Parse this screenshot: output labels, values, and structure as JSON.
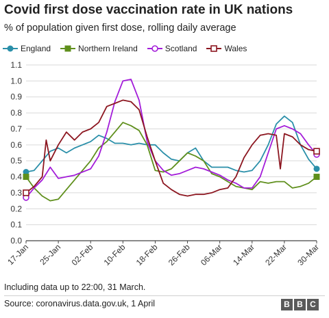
{
  "title": "Covid first dose vaccination rate in UK nations",
  "subtitle": "% of population given first dose, rolling daily average",
  "note": "Including data up to 22:00, 31 March.",
  "source": "Source: coronavirus.data.gov.uk, 1 April",
  "logo": [
    "B",
    "B",
    "C"
  ],
  "chart_data": {
    "type": "line",
    "x_start": "2021-01-17",
    "x_end": "2021-03-30",
    "x_tick_labels": [
      "17-Jan",
      "25-Jan",
      "02-Feb",
      "10-Feb",
      "18-Feb",
      "26-Feb",
      "06-Mar",
      "14-Mar",
      "22-Mar",
      "30-Mar"
    ],
    "y_ticks": [
      0.0,
      0.1,
      0.2,
      0.3,
      0.4,
      0.5,
      0.6,
      0.7,
      0.8,
      0.9,
      1.0,
      1.1
    ],
    "ylim": [
      0,
      1.1
    ],
    "grid": "horizontal",
    "legend_position": "top",
    "series": [
      {
        "name": "England",
        "color": "#2a8fa9",
        "marker": "circle",
        "points": [
          [
            "2021-01-17",
            0.43
          ],
          [
            "2021-01-19",
            0.44
          ],
          [
            "2021-01-21",
            0.5
          ],
          [
            "2021-01-23",
            0.56
          ],
          [
            "2021-01-25",
            0.58
          ],
          [
            "2021-01-27",
            0.55
          ],
          [
            "2021-01-29",
            0.58
          ],
          [
            "2021-01-31",
            0.6
          ],
          [
            "2021-02-02",
            0.62
          ],
          [
            "2021-02-04",
            0.66
          ],
          [
            "2021-02-06",
            0.64
          ],
          [
            "2021-02-08",
            0.61
          ],
          [
            "2021-02-10",
            0.61
          ],
          [
            "2021-02-12",
            0.6
          ],
          [
            "2021-02-14",
            0.61
          ],
          [
            "2021-02-16",
            0.6
          ],
          [
            "2021-02-18",
            0.6
          ],
          [
            "2021-02-20",
            0.55
          ],
          [
            "2021-02-22",
            0.51
          ],
          [
            "2021-02-24",
            0.5
          ],
          [
            "2021-02-26",
            0.55
          ],
          [
            "2021-02-28",
            0.58
          ],
          [
            "2021-03-02",
            0.5
          ],
          [
            "2021-03-04",
            0.46
          ],
          [
            "2021-03-06",
            0.46
          ],
          [
            "2021-03-08",
            0.46
          ],
          [
            "2021-03-10",
            0.44
          ],
          [
            "2021-03-12",
            0.43
          ],
          [
            "2021-03-14",
            0.44
          ],
          [
            "2021-03-16",
            0.5
          ],
          [
            "2021-03-18",
            0.6
          ],
          [
            "2021-03-20",
            0.73
          ],
          [
            "2021-03-22",
            0.78
          ],
          [
            "2021-03-24",
            0.74
          ],
          [
            "2021-03-26",
            0.6
          ],
          [
            "2021-03-28",
            0.51
          ],
          [
            "2021-03-30",
            0.45
          ]
        ]
      },
      {
        "name": "Northern Ireland",
        "color": "#5f8f1c",
        "marker": "square",
        "points": [
          [
            "2021-01-17",
            0.4
          ],
          [
            "2021-01-19",
            0.33
          ],
          [
            "2021-01-21",
            0.28
          ],
          [
            "2021-01-23",
            0.25
          ],
          [
            "2021-01-25",
            0.26
          ],
          [
            "2021-01-27",
            0.32
          ],
          [
            "2021-01-29",
            0.38
          ],
          [
            "2021-01-31",
            0.44
          ],
          [
            "2021-02-02",
            0.5
          ],
          [
            "2021-02-04",
            0.58
          ],
          [
            "2021-02-06",
            0.62
          ],
          [
            "2021-02-08",
            0.68
          ],
          [
            "2021-02-10",
            0.74
          ],
          [
            "2021-02-12",
            0.72
          ],
          [
            "2021-02-14",
            0.69
          ],
          [
            "2021-02-16",
            0.6
          ],
          [
            "2021-02-18",
            0.44
          ],
          [
            "2021-02-20",
            0.43
          ],
          [
            "2021-02-22",
            0.45
          ],
          [
            "2021-02-24",
            0.5
          ],
          [
            "2021-02-26",
            0.55
          ],
          [
            "2021-02-28",
            0.53
          ],
          [
            "2021-03-02",
            0.5
          ],
          [
            "2021-03-04",
            0.42
          ],
          [
            "2021-03-06",
            0.4
          ],
          [
            "2021-03-08",
            0.37
          ],
          [
            "2021-03-10",
            0.34
          ],
          [
            "2021-03-12",
            0.33
          ],
          [
            "2021-03-14",
            0.32
          ],
          [
            "2021-03-16",
            0.37
          ],
          [
            "2021-03-18",
            0.36
          ],
          [
            "2021-03-20",
            0.37
          ],
          [
            "2021-03-22",
            0.37
          ],
          [
            "2021-03-24",
            0.33
          ],
          [
            "2021-03-26",
            0.34
          ],
          [
            "2021-03-28",
            0.36
          ],
          [
            "2021-03-30",
            0.4
          ]
        ]
      },
      {
        "name": "Scotland",
        "color": "#a31cd9",
        "marker": "hollow-circle",
        "points": [
          [
            "2021-01-17",
            0.27
          ],
          [
            "2021-01-19",
            0.33
          ],
          [
            "2021-01-21",
            0.38
          ],
          [
            "2021-01-23",
            0.46
          ],
          [
            "2021-01-25",
            0.39
          ],
          [
            "2021-01-27",
            0.4
          ],
          [
            "2021-01-29",
            0.41
          ],
          [
            "2021-01-31",
            0.43
          ],
          [
            "2021-02-02",
            0.45
          ],
          [
            "2021-02-04",
            0.53
          ],
          [
            "2021-02-06",
            0.68
          ],
          [
            "2021-02-08",
            0.87
          ],
          [
            "2021-02-10",
            1.0
          ],
          [
            "2021-02-12",
            1.01
          ],
          [
            "2021-02-14",
            0.88
          ],
          [
            "2021-02-16",
            0.62
          ],
          [
            "2021-02-18",
            0.5
          ],
          [
            "2021-02-20",
            0.44
          ],
          [
            "2021-02-22",
            0.41
          ],
          [
            "2021-02-24",
            0.42
          ],
          [
            "2021-02-26",
            0.44
          ],
          [
            "2021-02-28",
            0.46
          ],
          [
            "2021-03-02",
            0.45
          ],
          [
            "2021-03-04",
            0.43
          ],
          [
            "2021-03-06",
            0.41
          ],
          [
            "2021-03-08",
            0.38
          ],
          [
            "2021-03-10",
            0.36
          ],
          [
            "2021-03-12",
            0.33
          ],
          [
            "2021-03-14",
            0.33
          ],
          [
            "2021-03-16",
            0.4
          ],
          [
            "2021-03-18",
            0.55
          ],
          [
            "2021-03-20",
            0.7
          ],
          [
            "2021-03-22",
            0.72
          ],
          [
            "2021-03-24",
            0.7
          ],
          [
            "2021-03-26",
            0.67
          ],
          [
            "2021-03-28",
            0.6
          ],
          [
            "2021-03-30",
            0.54
          ]
        ]
      },
      {
        "name": "Wales",
        "color": "#8c1620",
        "marker": "hollow-square",
        "points": [
          [
            "2021-01-17",
            0.3
          ],
          [
            "2021-01-19",
            0.34
          ],
          [
            "2021-01-21",
            0.4
          ],
          [
            "2021-01-22",
            0.63
          ],
          [
            "2021-01-23",
            0.5
          ],
          [
            "2021-01-25",
            0.6
          ],
          [
            "2021-01-27",
            0.68
          ],
          [
            "2021-01-29",
            0.63
          ],
          [
            "2021-01-31",
            0.68
          ],
          [
            "2021-02-02",
            0.7
          ],
          [
            "2021-02-04",
            0.74
          ],
          [
            "2021-02-06",
            0.84
          ],
          [
            "2021-02-08",
            0.86
          ],
          [
            "2021-02-10",
            0.88
          ],
          [
            "2021-02-12",
            0.87
          ],
          [
            "2021-02-14",
            0.82
          ],
          [
            "2021-02-16",
            0.65
          ],
          [
            "2021-02-18",
            0.5
          ],
          [
            "2021-02-20",
            0.36
          ],
          [
            "2021-02-22",
            0.32
          ],
          [
            "2021-02-24",
            0.29
          ],
          [
            "2021-02-26",
            0.28
          ],
          [
            "2021-02-28",
            0.29
          ],
          [
            "2021-03-02",
            0.29
          ],
          [
            "2021-03-04",
            0.3
          ],
          [
            "2021-03-06",
            0.32
          ],
          [
            "2021-03-08",
            0.33
          ],
          [
            "2021-03-10",
            0.4
          ],
          [
            "2021-03-12",
            0.52
          ],
          [
            "2021-03-14",
            0.6
          ],
          [
            "2021-03-16",
            0.66
          ],
          [
            "2021-03-18",
            0.67
          ],
          [
            "2021-03-20",
            0.66
          ],
          [
            "2021-03-21",
            0.45
          ],
          [
            "2021-03-22",
            0.67
          ],
          [
            "2021-03-24",
            0.65
          ],
          [
            "2021-03-26",
            0.6
          ],
          [
            "2021-03-28",
            0.57
          ],
          [
            "2021-03-30",
            0.56
          ]
        ]
      }
    ]
  }
}
